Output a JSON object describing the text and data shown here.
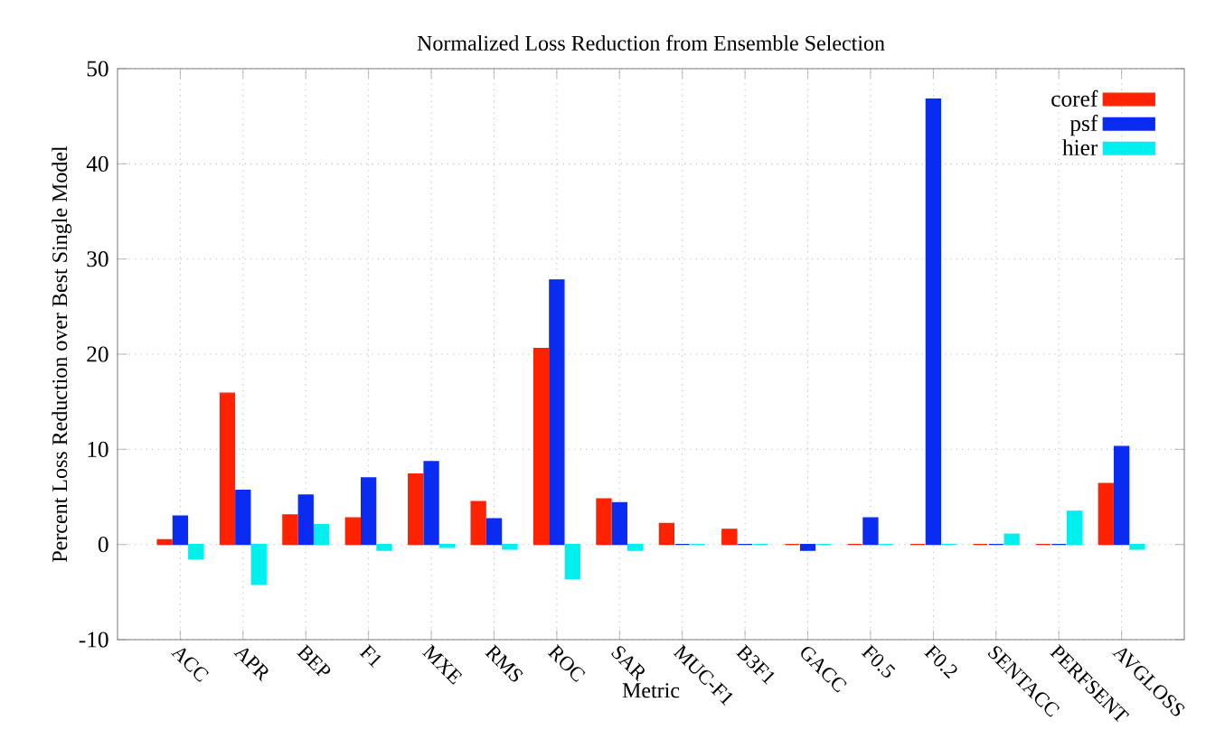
{
  "chart_data": {
    "type": "bar",
    "title": "Normalized Loss Reduction from Ensemble Selection",
    "xlabel": "Metric",
    "ylabel": "Percent Loss Reduction over Best Single Model",
    "categories": [
      "ACC",
      "APR",
      "BEP",
      "F1",
      "MXE",
      "RMS",
      "ROC",
      "SAR",
      "MUC-F1",
      "B3F1",
      "GACC",
      "F0.5",
      "F0.2",
      "SENTACC",
      "PERFSENT",
      "AVGLOSS"
    ],
    "series": [
      {
        "name": "coref",
        "color": "#ff2200",
        "values": [
          0.5,
          15.9,
          3.1,
          2.8,
          7.4,
          4.5,
          20.6,
          4.8,
          2.2,
          1.6,
          0,
          0,
          0,
          0,
          0,
          6.4
        ]
      },
      {
        "name": "psf",
        "color": "#0a2cf0",
        "values": [
          3.0,
          5.7,
          5.2,
          7.0,
          8.7,
          2.7,
          27.8,
          4.4,
          0,
          0,
          -0.6,
          2.8,
          46.8,
          0,
          0,
          10.3
        ]
      },
      {
        "name": "hier",
        "color": "#00f0f0",
        "values": [
          -1.5,
          -4.2,
          2.1,
          -0.6,
          -0.3,
          -0.5,
          -3.6,
          -0.6,
          0,
          0,
          0,
          0,
          0,
          1.1,
          3.5,
          -0.5
        ]
      }
    ],
    "ylim": [
      -10,
      50
    ],
    "yticks": [
      -10,
      0,
      10,
      20,
      30,
      40,
      50
    ],
    "grid": true,
    "legend": "top right"
  }
}
